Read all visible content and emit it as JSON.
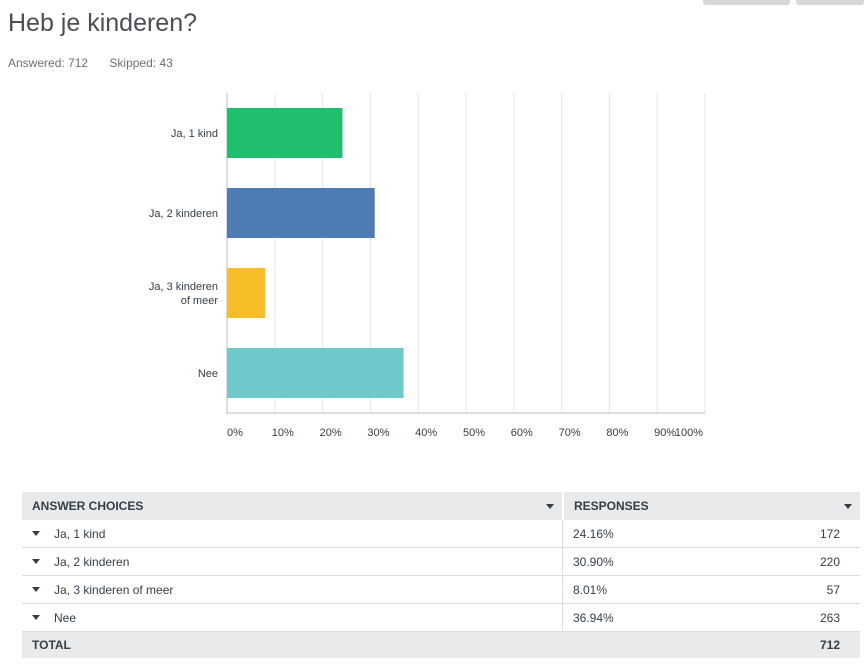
{
  "question": {
    "title": "Heb je kinderen?",
    "answered": "Answered: 712",
    "skipped": "Skipped: 43"
  },
  "colors": [
    "#1fbf6f",
    "#507cb6",
    "#f7be29",
    "#6fc8ca"
  ],
  "chart_data": {
    "type": "bar",
    "orientation": "horizontal",
    "categories": [
      [
        "Ja, 1 kind"
      ],
      [
        "Ja, 2 kinderen"
      ],
      [
        "Ja, 3 kinderen",
        "of meer"
      ],
      [
        "Nee"
      ]
    ],
    "values": [
      24.16,
      30.9,
      8.01,
      36.94
    ],
    "xlim": [
      0,
      100
    ],
    "xticks": [
      "0%",
      "10%",
      "20%",
      "30%",
      "40%",
      "50%",
      "60%",
      "70%",
      "80%",
      "90%",
      "100%"
    ],
    "grid": true
  },
  "table": {
    "headers": {
      "choices": "ANSWER CHOICES",
      "responses": "RESPONSES"
    },
    "rows": [
      {
        "label": "Ja, 1 kind",
        "pct": "24.16%",
        "count": "172"
      },
      {
        "label": "Ja, 2 kinderen",
        "pct": "30.90%",
        "count": "220"
      },
      {
        "label": "Ja, 3 kinderen of meer",
        "pct": "8.01%",
        "count": "57"
      },
      {
        "label": "Nee",
        "pct": "36.94%",
        "count": "263"
      }
    ],
    "total_label": "TOTAL",
    "total_value": "712"
  }
}
